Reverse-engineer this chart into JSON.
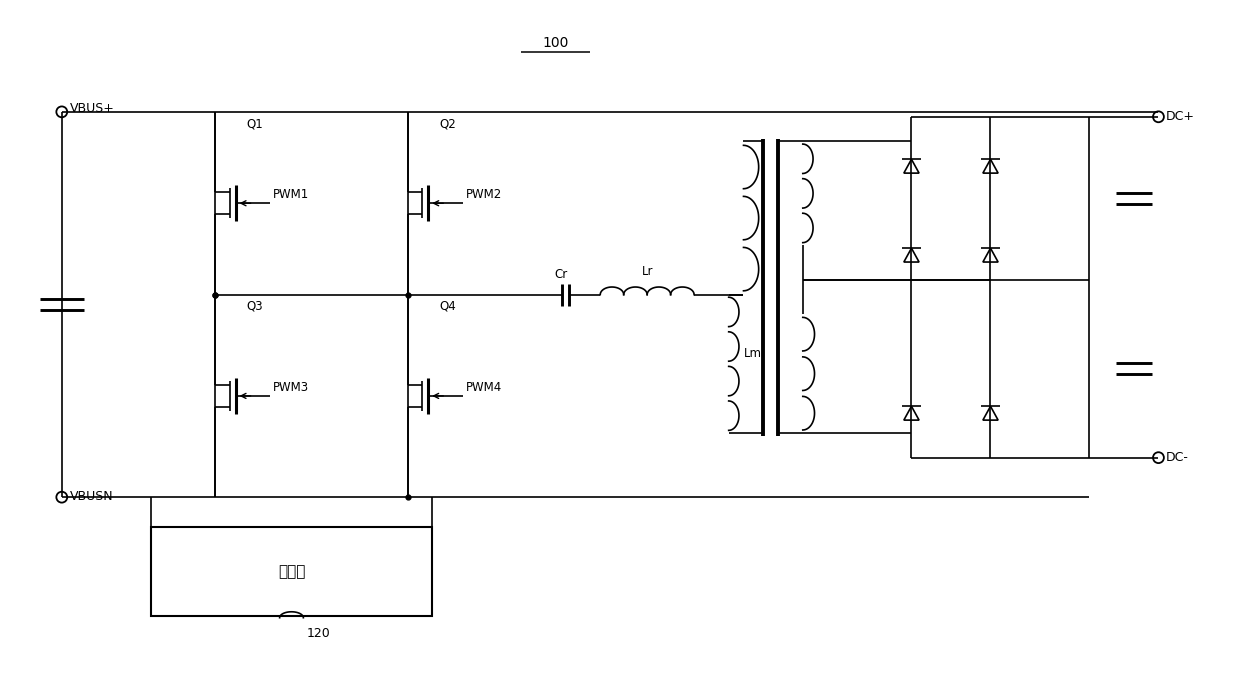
{
  "title": "100",
  "bg_color": "#ffffff",
  "labels": {
    "vbus_plus": "VBUS+",
    "vbus_n": "VBUSN",
    "dc_plus": "DC+",
    "dc_minus": "DC-",
    "q1": "Q1",
    "q2": "Q2",
    "q3": "Q3",
    "q4": "Q4",
    "pwm1": "PWM1",
    "pwm2": "PWM2",
    "pwm3": "PWM3",
    "pwm4": "PWM4",
    "cr": "Cr",
    "lr": "Lr",
    "lm": "Lm",
    "controller": "控制器",
    "label_120": "120"
  }
}
